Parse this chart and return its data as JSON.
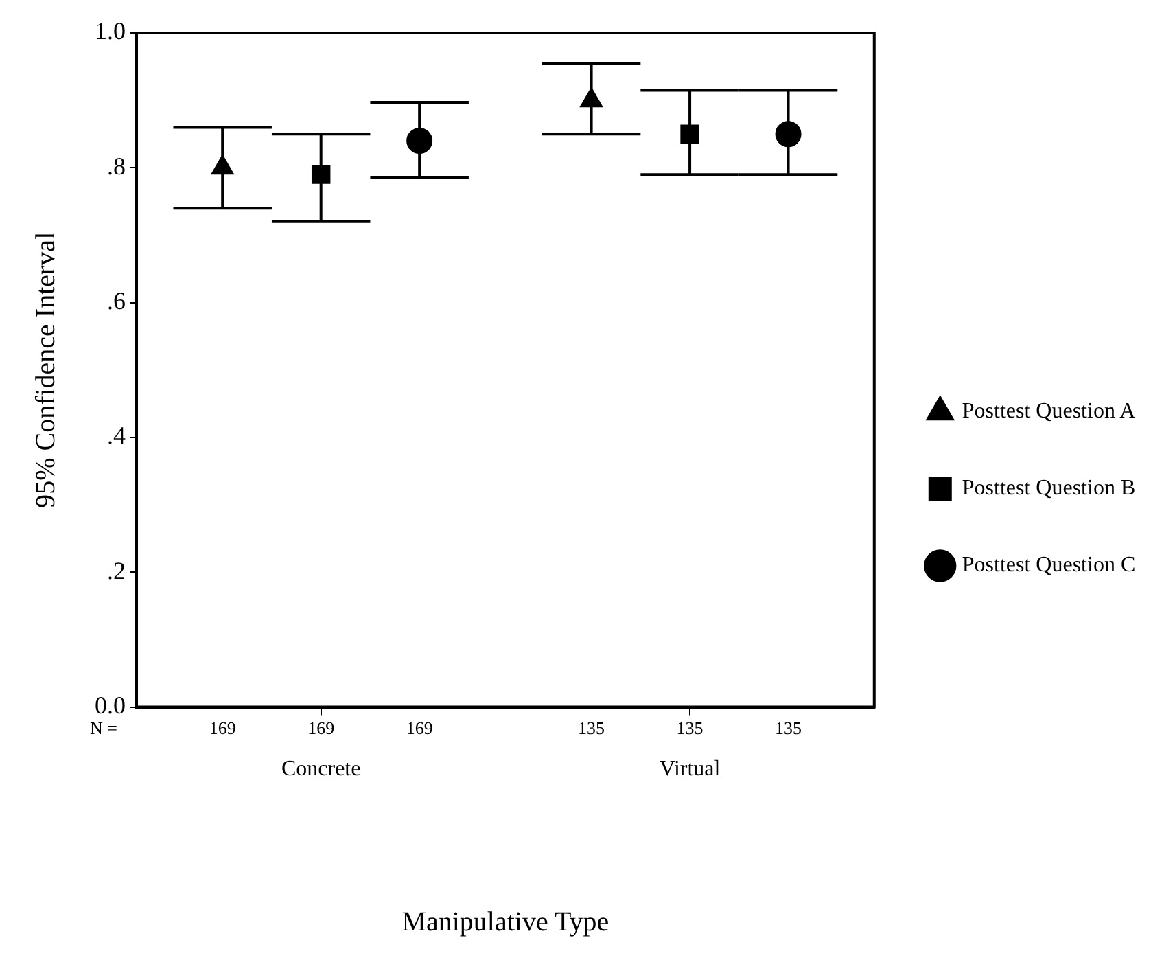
{
  "chart_data": {
    "type": "scatter",
    "xlabel": "Manipulative Type",
    "ylabel": "95% Confidence Interval",
    "categories": [
      "Concrete",
      "Virtual"
    ],
    "series": [
      {
        "name": "Posttest Question A",
        "color": "#000000",
        "marker": "triangle",
        "values": [
          0.8,
          0.9
        ],
        "errors": [
          [
            0.74,
            0.86
          ],
          [
            0.85,
            0.955
          ]
        ]
      },
      {
        "name": "Posttest Question B",
        "color": "#000000",
        "marker": "square",
        "values": [
          0.79,
          0.85
        ],
        "errors": [
          [
            0.72,
            0.85
          ],
          [
            0.79,
            0.915
          ]
        ]
      },
      {
        "name": "Posttest Question C",
        "color": "#000000",
        "marker": "circle",
        "values": [
          0.84,
          0.85
        ],
        "errors": [
          [
            0.785,
            0.897
          ],
          [
            0.79,
            0.915
          ]
        ]
      }
    ],
    "ylim": [
      0,
      1
    ],
    "yticks": [
      {
        "value": 0,
        "label": "0.0"
      },
      {
        "value": 0.2,
        "label": ".2"
      },
      {
        "value": 0.4,
        "label": ".4"
      },
      {
        "value": 0.6,
        "label": ".6"
      },
      {
        "value": 0.8,
        "label": ".8"
      },
      {
        "value": 1,
        "label": "1.0"
      }
    ],
    "grid": false,
    "legend": "right",
    "annotations": [
      "N =",
      "169",
      "169",
      "169",
      "135",
      "135",
      "135"
    ]
  }
}
